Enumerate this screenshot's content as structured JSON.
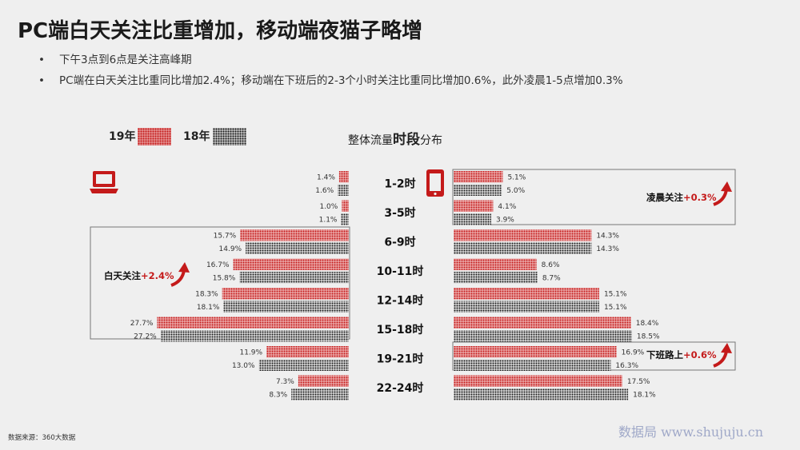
{
  "title": "PC端白天关注比重增加，移动端夜猫子略增",
  "bullets": [
    "下午3点到6点是关注高峰期",
    "PC端在白天关注比重同比增加2.4%；移动端在下班后的2-3个小时关注比重同比增加0.6%，此外凌晨1-5点增加0.3%"
  ],
  "legend": {
    "y19": "19年",
    "y18": "18年"
  },
  "chart_heading": {
    "prefix": "整体流量",
    "big": "时段",
    "suffix": "分布"
  },
  "notes": {
    "pc_day": {
      "label": "白天关注",
      "delta": "+2.4%"
    },
    "mobile_early": {
      "label": "凌晨关注",
      "delta": "+0.3%"
    },
    "mobile_commute": {
      "label": "下班路上",
      "delta": "+0.6%"
    }
  },
  "icons": {
    "pc": "laptop-icon",
    "mobile": "tablet-icon",
    "arrow": "up-arrow-icon"
  },
  "colors": {
    "accent": "#c41a1a",
    "series19": "#c41a1a",
    "series18": "#1a1a1a"
  },
  "footer": "数据来源：360大数据",
  "watermark": "数据局  www.shujuju.cn",
  "chart_data": {
    "type": "bar",
    "orientation": "horizontal-butterfly",
    "categories": [
      "1-2时",
      "3-5时",
      "6-9时",
      "10-11时",
      "12-14时",
      "15-18时",
      "19-21时",
      "22-24时"
    ],
    "pc": {
      "series": [
        {
          "name": "19年",
          "values": [
            1.4,
            1.0,
            15.7,
            16.7,
            18.3,
            27.7,
            11.9,
            7.3
          ],
          "labels": [
            "1.4%",
            "1.0%",
            "15.7%",
            "16.7%",
            "18.3%",
            "27.7%",
            "11.9%",
            "7.3%"
          ]
        },
        {
          "name": "18年",
          "values": [
            1.6,
            1.1,
            14.9,
            15.8,
            18.1,
            27.2,
            13.0,
            8.3
          ],
          "labels": [
            "1.6%",
            "1.1%",
            "14.9%",
            "15.8%",
            "18.1%",
            "27.2%",
            "13.0%",
            "8.3%"
          ]
        }
      ]
    },
    "mobile": {
      "series": [
        {
          "name": "19年",
          "values": [
            5.1,
            4.1,
            14.3,
            8.6,
            15.1,
            18.4,
            16.9,
            17.5
          ],
          "labels": [
            "5.1%",
            "4.1%",
            "14.3%",
            "8.6%",
            "15.1%",
            "18.4%",
            "16.9%",
            "17.5%"
          ]
        },
        {
          "name": "18年",
          "values": [
            5.0,
            3.9,
            14.3,
            8.7,
            15.1,
            18.5,
            16.3,
            18.1
          ],
          "labels": [
            "5.0%",
            "3.9%",
            "14.3%",
            "8.7%",
            "15.1%",
            "18.5%",
            "16.3%",
            "18.1%"
          ]
        }
      ]
    }
  }
}
